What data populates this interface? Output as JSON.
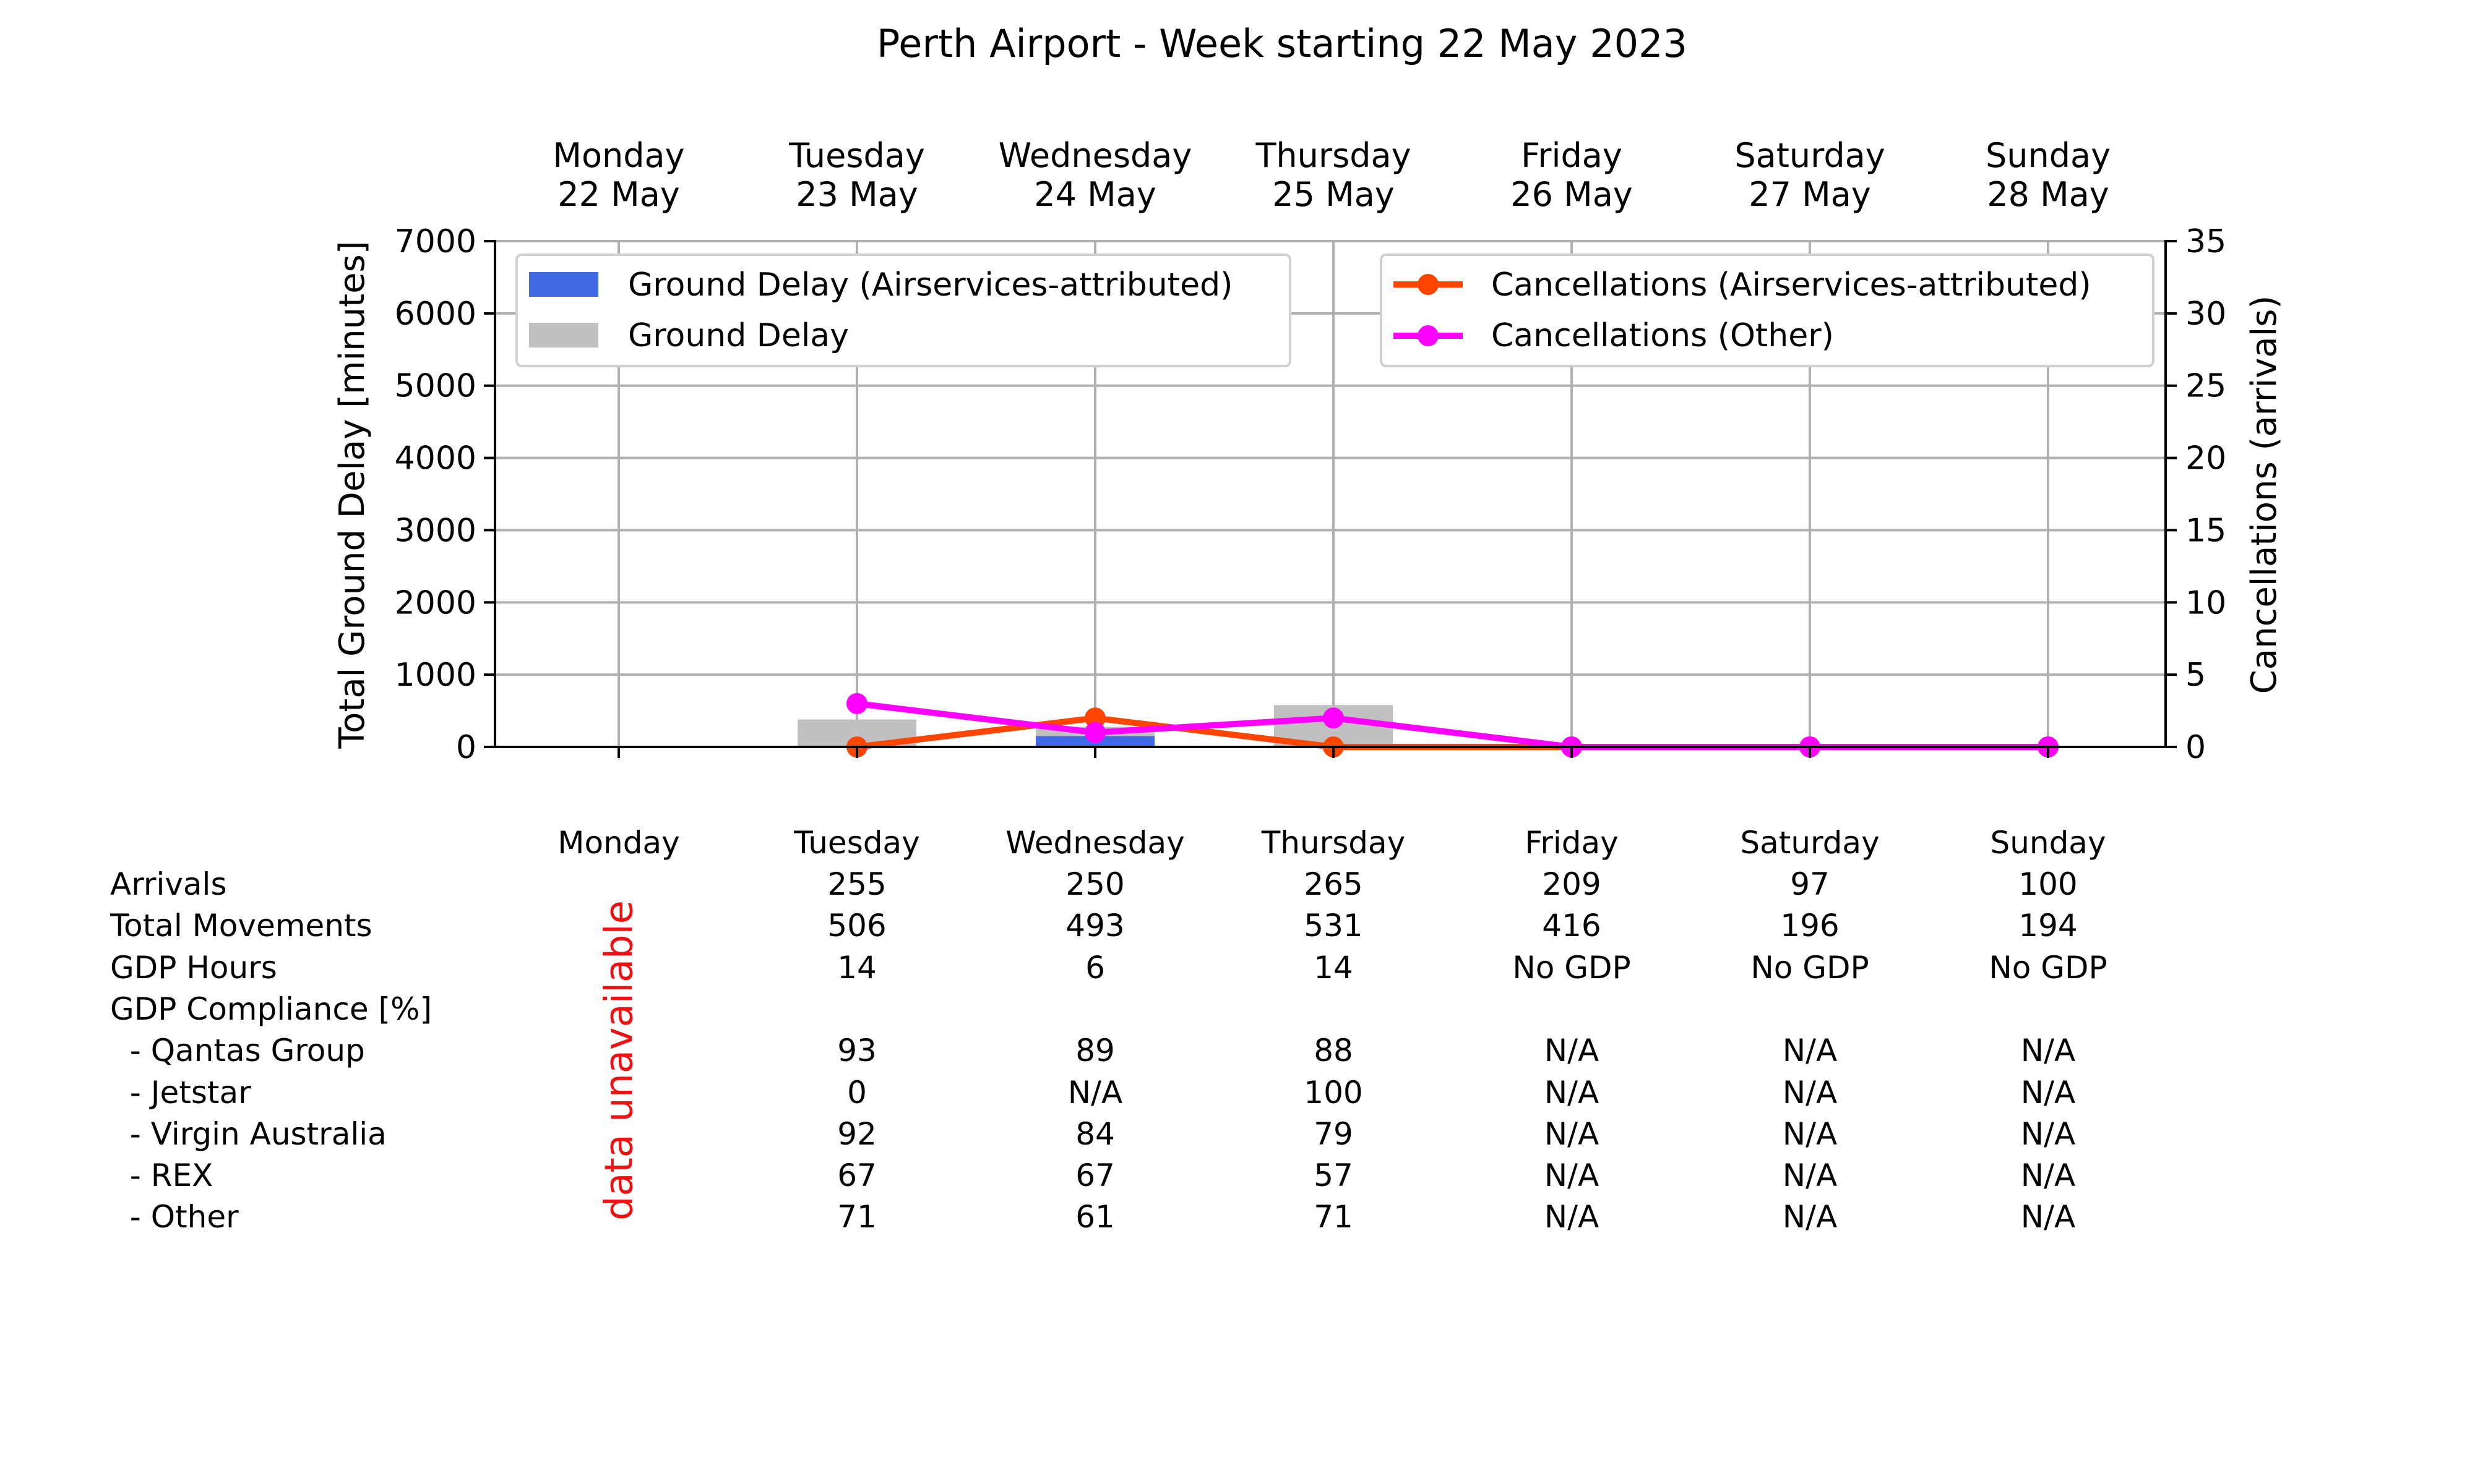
{
  "chart_data": {
    "type": "bar",
    "title": "Perth Airport - Week starting 22 May 2023",
    "categories": [
      "Monday",
      "Tuesday",
      "Wednesday",
      "Thursday",
      "Friday",
      "Saturday",
      "Sunday"
    ],
    "category_dates": [
      "22 May",
      "23 May",
      "24 May",
      "25 May",
      "26 May",
      "27 May",
      "28 May"
    ],
    "ylabel": "Total Ground Delay [minutes]",
    "ylim": [
      0,
      7000
    ],
    "yticks": [
      0,
      1000,
      2000,
      3000,
      4000,
      5000,
      6000,
      7000
    ],
    "y2label": "Cancellations (arrivals)",
    "y2lim": [
      0,
      35
    ],
    "y2ticks": [
      0,
      5,
      10,
      15,
      20,
      25,
      30,
      35
    ],
    "grid": true,
    "series": [
      {
        "name": "Ground Delay (Airservices-attributed)",
        "kind": "bar",
        "axis": "left",
        "color": "#4169e1",
        "values": [
          null,
          0,
          150,
          0,
          0,
          0,
          0
        ]
      },
      {
        "name": "Ground Delay",
        "kind": "bar",
        "axis": "left",
        "color": "#c0c0c0",
        "values": [
          null,
          380,
          280,
          580,
          0,
          0,
          0
        ]
      },
      {
        "name": "Cancellations (Airservices-attributed)",
        "kind": "line",
        "axis": "right",
        "color": "#ff4500",
        "values": [
          null,
          0,
          2,
          0,
          0,
          0,
          0
        ]
      },
      {
        "name": "Cancellations (Other)",
        "kind": "line",
        "axis": "right",
        "color": "#ff00ff",
        "values": [
          null,
          3,
          1,
          2,
          0,
          0,
          0
        ]
      }
    ],
    "legend_left_placement": "top-left",
    "legend_right_placement": "top-right"
  },
  "table": {
    "header": [
      "Monday",
      "Tuesday",
      "Wednesday",
      "Thursday",
      "Friday",
      "Saturday",
      "Sunday"
    ],
    "rows": [
      {
        "label": "Arrivals",
        "values": [
          "",
          "255",
          "250",
          "265",
          "209",
          "97",
          "100"
        ]
      },
      {
        "label": "Total Movements",
        "values": [
          "",
          "506",
          "493",
          "531",
          "416",
          "196",
          "194"
        ]
      },
      {
        "label": "GDP Hours",
        "values": [
          "",
          "14",
          "6",
          "14",
          "No GDP",
          "No GDP",
          "No GDP"
        ]
      },
      {
        "label": "GDP Compliance [%]",
        "values": [
          "",
          "",
          "",
          "",
          "",
          "",
          ""
        ]
      },
      {
        "label": "  - Qantas Group",
        "values": [
          "",
          "93",
          "89",
          "88",
          "N/A",
          "N/A",
          "N/A"
        ]
      },
      {
        "label": "  - Jetstar",
        "values": [
          "",
          "0",
          "N/A",
          "100",
          "N/A",
          "N/A",
          "N/A"
        ]
      },
      {
        "label": "  - Virgin Australia",
        "values": [
          "",
          "92",
          "84",
          "79",
          "N/A",
          "N/A",
          "N/A"
        ]
      },
      {
        "label": "  - REX",
        "values": [
          "",
          "67",
          "67",
          "57",
          "N/A",
          "N/A",
          "N/A"
        ]
      },
      {
        "label": "  - Other",
        "values": [
          "",
          "71",
          "61",
          "71",
          "N/A",
          "N/A",
          "N/A"
        ]
      }
    ],
    "unavailable_note": "data unavailable"
  }
}
